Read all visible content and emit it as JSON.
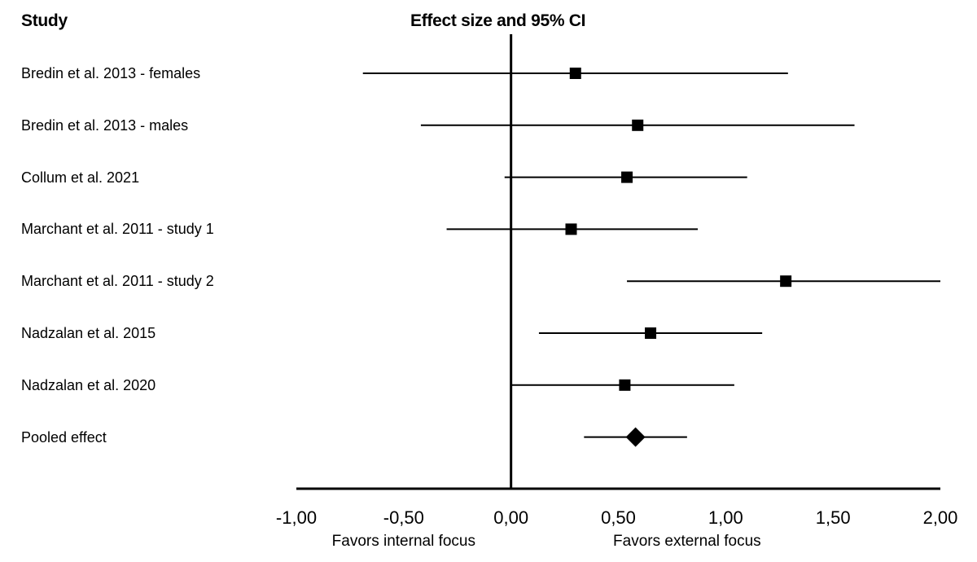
{
  "chart_data": {
    "type": "forest",
    "title": "Effect size and 95% CI",
    "column_header": "Study",
    "xlim": [
      -1.0,
      2.0
    ],
    "x_ticks": [
      -1.0,
      -0.5,
      0.0,
      0.5,
      1.0,
      1.5,
      2.0
    ],
    "x_tick_labels": [
      "-1,00",
      "-0,50",
      "0,00",
      "0,50",
      "1,00",
      "1,50",
      "2,00"
    ],
    "favors_left": "Favors internal focus",
    "favors_right": "Favors external focus",
    "studies": [
      {
        "label": "Bredin et al. 2013  - females",
        "effect": 0.3,
        "ci_low": -0.69,
        "ci_high": 1.29,
        "marker": "square"
      },
      {
        "label": "Bredin et al. 2013  - males",
        "effect": 0.59,
        "ci_low": -0.42,
        "ci_high": 1.6,
        "marker": "square"
      },
      {
        "label": "Collum  et al. 2021",
        "effect": 0.54,
        "ci_low": -0.03,
        "ci_high": 1.1,
        "marker": "square"
      },
      {
        "label": "Marchant  et al. 2011  - study 1",
        "effect": 0.28,
        "ci_low": -0.3,
        "ci_high": 0.87,
        "marker": "square"
      },
      {
        "label": "Marchant  et al. 2011  - study 2",
        "effect": 1.28,
        "ci_low": 0.54,
        "ci_high": 2.0,
        "marker": "square"
      },
      {
        "label": "Nadzalan  et al. 2015",
        "effect": 0.65,
        "ci_low": 0.13,
        "ci_high": 1.17,
        "marker": "square"
      },
      {
        "label": "Nadzalan  et al. 2020",
        "effect": 0.53,
        "ci_low": 0.0,
        "ci_high": 1.04,
        "marker": "square"
      },
      {
        "label": "Pooled  effect",
        "effect": 0.58,
        "ci_low": 0.34,
        "ci_high": 0.82,
        "marker": "diamond"
      }
    ]
  }
}
